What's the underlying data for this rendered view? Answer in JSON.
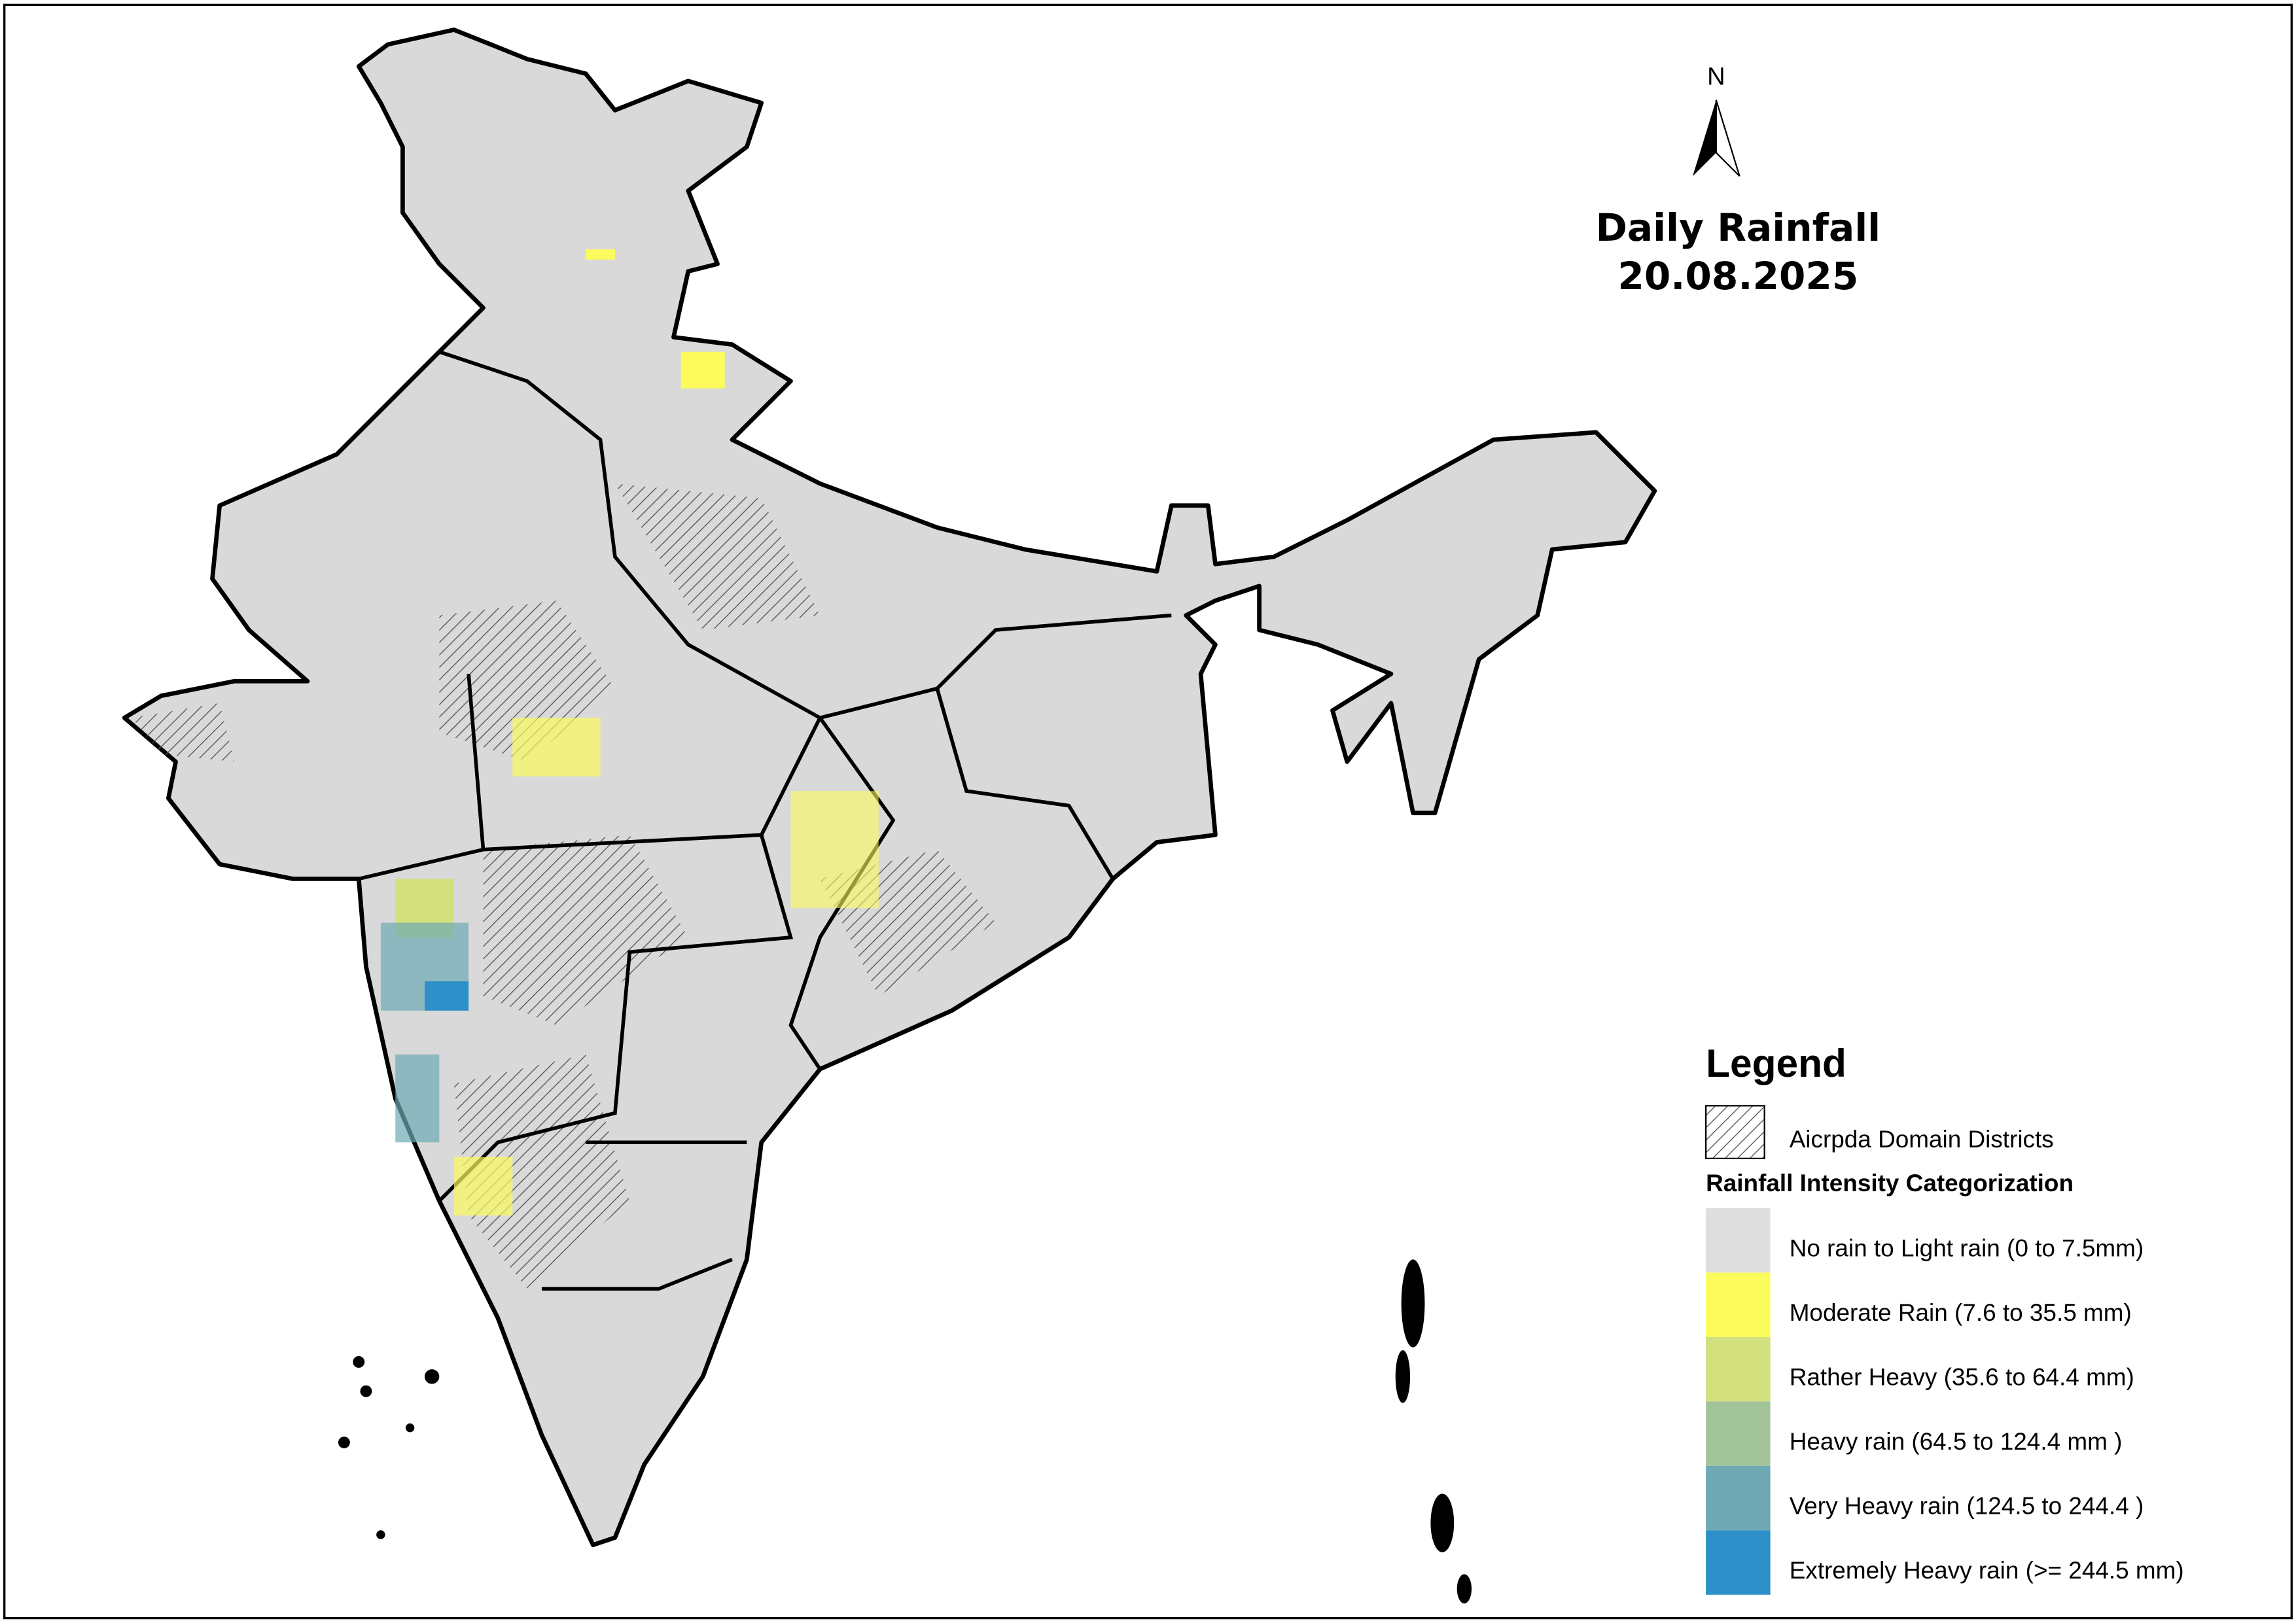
{
  "map": {
    "title": "Daily Rainfall",
    "date": "20.08.2025",
    "north_label": "N",
    "legend": {
      "title": "Legend",
      "hatch_item": "Aicrpda Domain Districts",
      "category_heading": "Rainfall Intensity Categorization",
      "categories": [
        {
          "label": "No rain to Light rain (0 to 7.5mm)",
          "color": "#dedede"
        },
        {
          "label": "Moderate Rain (7.6 to 35.5 mm)",
          "color": "#fbfb5e"
        },
        {
          "label": "Rather Heavy (35.6 to 64.4 mm)",
          "color": "#d3e07e"
        },
        {
          "label": "Heavy rain (64.5 to 124.4 mm )",
          "color": "#a2c39a"
        },
        {
          "label": "Very Heavy rain (124.5 to 244.4 )",
          "color": "#6ea9b3"
        },
        {
          "label": "Extremely Heavy rain  (>= 244.5 mm)",
          "color": "#2e90c9"
        }
      ]
    }
  }
}
